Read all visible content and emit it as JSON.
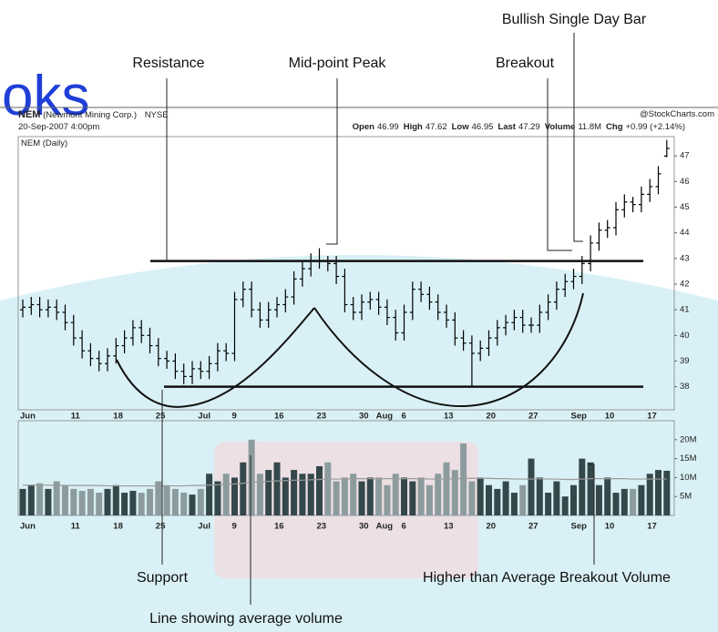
{
  "watermark": "oks",
  "header": {
    "symbol": "NEM",
    "company": "(Newmont Mining Corp.)",
    "exchange": "NYSE",
    "date": "20-Sep-2007 4:00pm",
    "source": "@StockCharts.com",
    "quote": [
      {
        "label": "Open",
        "value": 46.99
      },
      {
        "label": "High",
        "value": 47.62
      },
      {
        "label": "Low",
        "value": 46.95
      },
      {
        "label": "Last",
        "value": 47.29
      },
      {
        "label": "Volume",
        "value": "11.8M"
      },
      {
        "label": "Chg",
        "value": "+0.99 (+2.14%)"
      }
    ]
  },
  "annotations": {
    "resistance": "Resistance",
    "midpoint": "Mid-point Peak",
    "breakout": "Breakout",
    "bullish": "Bullish Single Day Bar",
    "support": "Support",
    "breakout_volume": "Higher than Average Breakout Volume",
    "average_volume": "Line showing average volume"
  },
  "chart_data": [
    {
      "type": "ohlc",
      "label": "NEM (Daily)",
      "color": "#000000",
      "categories": [
        "Jun",
        null,
        null,
        null,
        null,
        null,
        "11",
        null,
        null,
        null,
        null,
        "18",
        null,
        null,
        null,
        null,
        "25",
        null,
        null,
        null,
        null,
        "Jul",
        null,
        null,
        null,
        "9",
        null,
        null,
        null,
        null,
        "16",
        null,
        null,
        null,
        null,
        "23",
        null,
        null,
        null,
        null,
        "30",
        null,
        "Aug",
        null,
        null,
        "6",
        null,
        null,
        null,
        null,
        "13",
        null,
        null,
        null,
        null,
        "20",
        null,
        null,
        null,
        null,
        "27",
        null,
        null,
        null,
        null,
        "Sep",
        null,
        null,
        null,
        "10",
        null,
        null,
        null,
        null,
        "17",
        null,
        null
      ],
      "open": [
        41.0,
        41.1,
        41.2,
        41.0,
        41.1,
        40.9,
        40.5,
        39.9,
        39.4,
        39.1,
        38.9,
        39.2,
        39.6,
        39.9,
        40.3,
        40.0,
        39.6,
        39.1,
        39.0,
        38.6,
        38.4,
        38.7,
        38.6,
        38.9,
        39.4,
        39.3,
        41.4,
        41.8,
        41.0,
        40.6,
        41.0,
        41.2,
        41.5,
        42.2,
        42.6,
        42.9,
        42.9,
        42.8,
        42.3,
        41.2,
        40.9,
        41.3,
        41.4,
        41.1,
        40.7,
        40.1,
        40.9,
        41.8,
        41.6,
        41.3,
        40.9,
        40.6,
        39.9,
        39.7,
        39.3,
        39.5,
        39.9,
        40.3,
        40.5,
        40.7,
        40.4,
        40.4,
        40.9,
        41.3,
        41.8,
        42.1,
        42.3,
        42.8,
        43.6,
        44.1,
        44.2,
        44.9,
        45.2,
        45.1,
        45.5,
        45.8,
        46.99
      ],
      "high": [
        41.4,
        41.5,
        41.5,
        41.4,
        41.4,
        41.2,
        40.8,
        40.2,
        39.7,
        39.4,
        39.5,
        39.9,
        40.2,
        40.6,
        40.6,
        40.3,
        39.9,
        39.4,
        39.3,
        38.9,
        39.0,
        39.0,
        39.2,
        39.7,
        39.7,
        41.7,
        42.1,
        42.1,
        41.3,
        41.3,
        41.5,
        41.8,
        42.5,
        42.9,
        43.2,
        43.4,
        43.1,
        43.1,
        42.6,
        41.5,
        41.6,
        41.7,
        41.7,
        41.4,
        41.0,
        41.2,
        42.1,
        42.1,
        41.9,
        41.6,
        41.2,
        40.9,
        40.2,
        40.0,
        39.8,
        40.2,
        40.6,
        40.8,
        41.0,
        41.0,
        40.7,
        41.2,
        41.6,
        42.1,
        42.4,
        42.6,
        43.1,
        43.9,
        44.4,
        44.5,
        45.2,
        45.5,
        45.4,
        45.8,
        46.1,
        46.6,
        47.62
      ],
      "low": [
        40.7,
        40.8,
        40.7,
        40.7,
        40.6,
        40.2,
        39.6,
        39.1,
        38.8,
        38.6,
        38.6,
        38.9,
        39.3,
        39.6,
        39.7,
        39.3,
        38.8,
        38.7,
        38.3,
        38.1,
        38.1,
        38.3,
        38.3,
        38.6,
        39.0,
        39.0,
        41.1,
        40.7,
        40.3,
        40.3,
        40.7,
        40.9,
        41.2,
        41.9,
        42.3,
        42.6,
        42.5,
        42.0,
        40.9,
        40.6,
        40.6,
        41.0,
        40.8,
        40.4,
        39.8,
        39.8,
        40.6,
        41.3,
        41.0,
        40.6,
        40.3,
        39.6,
        39.4,
        38.0,
        39.0,
        39.2,
        39.6,
        40.0,
        40.2,
        40.1,
        40.1,
        40.1,
        40.6,
        41.0,
        41.5,
        41.8,
        42.0,
        42.5,
        43.3,
        43.8,
        43.9,
        44.6,
        44.8,
        44.8,
        45.2,
        45.5,
        46.95
      ],
      "close": [
        41.1,
        41.2,
        41.0,
        41.1,
        40.9,
        40.5,
        39.9,
        39.4,
        39.1,
        38.9,
        39.2,
        39.6,
        39.9,
        40.3,
        40.0,
        39.6,
        39.1,
        39.0,
        38.6,
        38.4,
        38.7,
        38.6,
        38.9,
        39.4,
        39.3,
        41.4,
        41.8,
        41.0,
        40.6,
        41.0,
        41.2,
        41.5,
        42.2,
        42.6,
        42.9,
        42.9,
        42.8,
        42.3,
        41.2,
        40.9,
        41.3,
        41.4,
        41.1,
        40.7,
        40.1,
        40.9,
        41.8,
        41.6,
        41.3,
        40.9,
        40.6,
        39.9,
        39.7,
        39.3,
        39.5,
        39.9,
        40.3,
        40.5,
        40.7,
        40.4,
        40.4,
        40.9,
        41.3,
        41.8,
        42.1,
        42.3,
        42.8,
        43.6,
        44.1,
        44.2,
        44.9,
        45.2,
        45.1,
        45.5,
        45.8,
        46.3,
        47.29
      ],
      "resistance": 42.9,
      "support": 38.0,
      "ylim": [
        37.1,
        47.75
      ],
      "yticks": [
        38,
        39,
        40,
        41,
        42,
        43,
        44,
        45,
        46,
        47
      ],
      "grid": false
    },
    {
      "type": "bar",
      "up_color": "#34474a",
      "down_color": "#8c9c9e",
      "avg_color": "#9a9a9a",
      "categories": [
        "Jun",
        null,
        null,
        null,
        null,
        null,
        "11",
        null,
        null,
        null,
        null,
        "18",
        null,
        null,
        null,
        null,
        "25",
        null,
        null,
        null,
        null,
        "Jul",
        null,
        null,
        null,
        "9",
        null,
        null,
        null,
        null,
        "16",
        null,
        null,
        null,
        null,
        "23",
        null,
        null,
        null,
        null,
        "30",
        null,
        "Aug",
        null,
        null,
        "6",
        null,
        null,
        null,
        null,
        "13",
        null,
        null,
        null,
        null,
        "20",
        null,
        null,
        null,
        null,
        "27",
        null,
        null,
        null,
        null,
        "Sep",
        null,
        null,
        null,
        "10",
        null,
        null,
        null,
        null,
        "17",
        null,
        null
      ],
      "values": [
        7,
        8,
        8.5,
        7,
        9,
        8,
        7,
        6.5,
        7,
        6,
        7,
        8,
        6,
        6.5,
        6,
        7,
        9,
        8,
        7,
        6,
        5.5,
        7,
        11,
        9,
        11,
        10,
        14,
        20,
        11,
        12,
        14,
        10,
        12,
        11,
        11,
        13,
        14,
        9,
        10,
        11,
        9,
        10,
        10,
        8,
        11,
        10,
        9,
        10,
        8,
        11,
        14,
        12,
        19,
        9,
        10,
        8,
        7,
        9,
        6,
        8,
        15,
        10,
        6,
        9,
        5,
        8,
        15,
        14,
        8,
        10,
        6,
        7,
        7,
        8,
        11,
        12,
        11.8
      ],
      "average": [
        8.0,
        8.0,
        8.0,
        8.0,
        8.0,
        7.9,
        7.9,
        7.9,
        7.9,
        7.9,
        7.8,
        7.8,
        7.8,
        7.8,
        7.8,
        7.8,
        7.8,
        7.8,
        7.8,
        7.8,
        7.9,
        7.9,
        8.0,
        8.1,
        8.2,
        8.3,
        8.5,
        8.8,
        8.9,
        9.0,
        9.1,
        9.2,
        9.3,
        9.3,
        9.4,
        9.5,
        9.6,
        9.6,
        9.6,
        9.7,
        9.7,
        9.7,
        9.7,
        9.7,
        9.7,
        9.7,
        9.7,
        9.7,
        9.6,
        9.6,
        9.6,
        9.7,
        9.8,
        9.8,
        9.8,
        9.8,
        9.7,
        9.7,
        9.6,
        9.6,
        9.6,
        9.7,
        9.6,
        9.6,
        9.5,
        9.5,
        9.6,
        9.7,
        9.7,
        9.7,
        9.7,
        9.7,
        9.6,
        9.6,
        9.6,
        9.6,
        9.6
      ],
      "ylim": [
        0,
        25
      ],
      "yticks": [
        {
          "value": 5,
          "label": "5M"
        },
        {
          "value": 10,
          "label": "10M"
        },
        {
          "value": 15,
          "label": "15M"
        },
        {
          "value": 20,
          "label": "20M"
        }
      ]
    }
  ]
}
